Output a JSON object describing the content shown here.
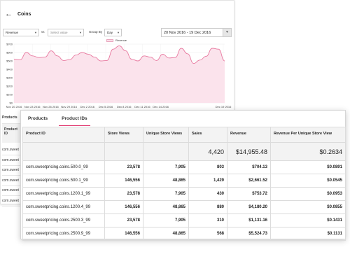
{
  "page": {
    "title": "Coins",
    "back_icon": "back-arrow-icon"
  },
  "filters": {
    "metric": "Revenue",
    "vs_label": "vs",
    "compare_placeholder": "Select value",
    "group_by_label": "Group By",
    "group_by_value": "Day",
    "date_range": "20 Nov 2016 - 19 Dec 2016"
  },
  "legend": {
    "label": "Revenue",
    "color": "#f3b7cb"
  },
  "chart_data": {
    "type": "area",
    "title": "",
    "xlabel": "",
    "ylabel": "",
    "ylim": [
      0,
      700
    ],
    "yticks": [
      "$0",
      "$100",
      "$200",
      "$300",
      "$400",
      "$500",
      "$600",
      "$700"
    ],
    "xticks": [
      "Nov 20 2016",
      "Nov 23 2016",
      "Nov 26 2016",
      "Nov 29 2016",
      "Dec 2 2016",
      "Dec 5 2016",
      "Dec 8 2016",
      "Dec 11 2016",
      "Dec 14 2016",
      "Dec 19 2016"
    ],
    "series": [
      {
        "name": "Revenue",
        "color": "#e87aa0",
        "values": [
          520,
          515,
          600,
          560,
          540,
          545,
          620,
          560,
          505,
          515,
          570,
          600,
          580,
          545,
          500,
          505,
          640,
          680,
          620,
          520,
          500,
          560,
          545,
          505,
          580,
          535,
          540,
          650,
          585,
          470,
          510,
          555,
          650,
          640,
          500
        ]
      }
    ]
  },
  "side_table": {
    "tab": "Products",
    "header": "Product ID",
    "rows": [
      "com.sweet",
      "com.sweet",
      "com.sweet",
      "com.sweet",
      "com.sweet",
      "com.sweet"
    ]
  },
  "tabs": [
    {
      "label": "Products",
      "active": false
    },
    {
      "label": "Product IDs",
      "active": true
    }
  ],
  "table": {
    "headers": [
      "Product ID",
      "Store Views",
      "Unique Store Views",
      "Sales",
      "Revenue",
      "Revenue Per Unique Store View"
    ],
    "totals": [
      "",
      "",
      "",
      "4,420",
      "$14,955.48",
      "$0.2634"
    ],
    "rows": [
      [
        "com.sweetpricing.coins.500.0_99",
        "23,578",
        "7,905",
        "803",
        "$704.13",
        "$0.0891"
      ],
      [
        "com.sweetpricing.coins.500.1_99",
        "146,556",
        "48,865",
        "1,429",
        "$2,661.52",
        "$0.0545"
      ],
      [
        "com.sweetpricing.coins.1200.1_99",
        "23,578",
        "7,905",
        "430",
        "$753.72",
        "$0.0953"
      ],
      [
        "com.sweetpricing.coins.1200.4_99",
        "146,556",
        "48,865",
        "880",
        "$4,180.20",
        "$0.0855"
      ],
      [
        "com.sweetpricing.coins.2500.3_99",
        "23,578",
        "7,905",
        "310",
        "$1,131.16",
        "$0.1431"
      ],
      [
        "com.sweetpricing.coins.2500.9_99",
        "146,556",
        "48,865",
        "568",
        "$5,524.73",
        "$0.1131"
      ]
    ]
  }
}
